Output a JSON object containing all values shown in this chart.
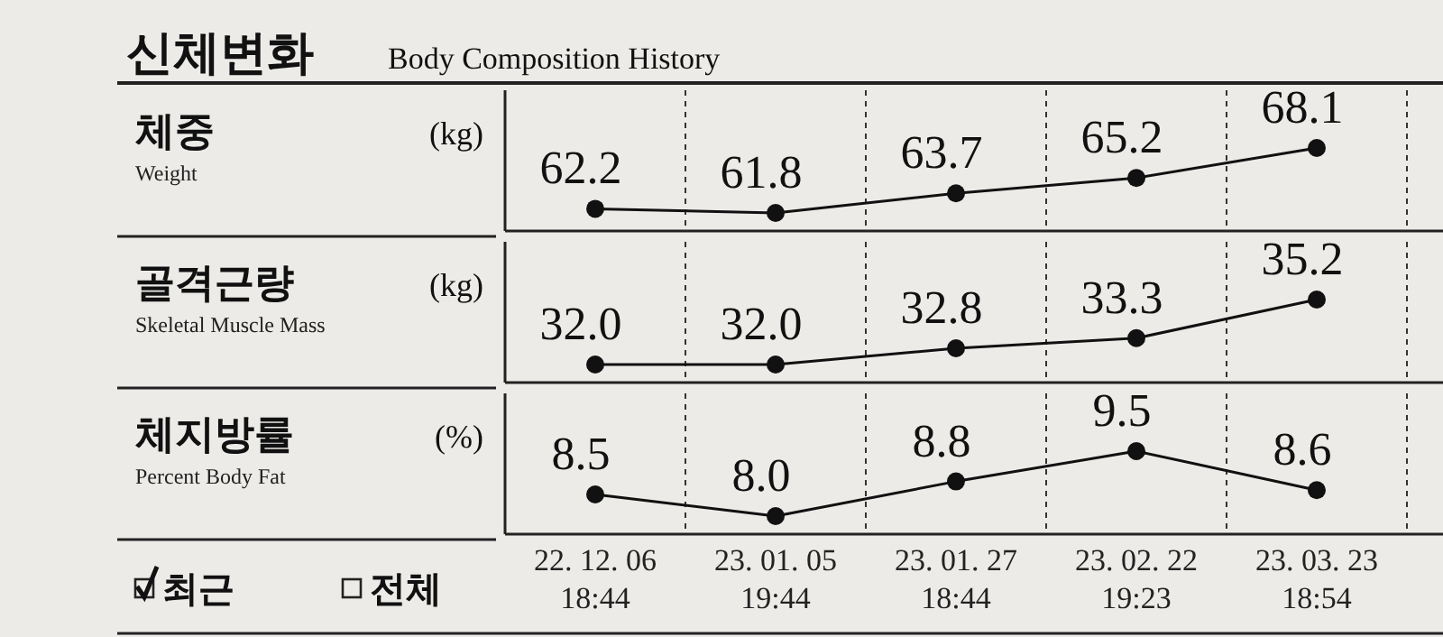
{
  "chart_data": [
    {
      "type": "line",
      "title": "신체변화",
      "subtitle": "Body Composition History",
      "ylabel": "체중",
      "annotations": [
        "Weight",
        "(kg)"
      ],
      "categories": [
        null,
        null,
        null,
        null,
        null
      ],
      "series": [
        {
          "color": "#111111",
          "values": [
            62.2,
            61.8,
            63.7,
            65.2,
            68.1
          ]
        }
      ],
      "data_labels": true,
      "marker": "circle",
      "grid": "x",
      "tick_labels": false
    },
    {
      "type": "line",
      "ylabel": "골격근량",
      "annotations": [
        "Skeletal Muscle Mass",
        "(kg)"
      ],
      "categories": [
        null,
        null,
        null,
        null,
        null
      ],
      "series": [
        {
          "color": "#111111",
          "values": [
            32.0,
            32.0,
            32.8,
            33.3,
            35.2
          ],
          "value_labels": [
            "32.0",
            "32.0",
            "32.8",
            "33.3",
            "35.2"
          ]
        }
      ],
      "marker": "circle",
      "grid": "x",
      "tick_labels": false
    },
    {
      "type": "line",
      "ylabel": "체지방률",
      "annotations": [
        "Percent Body Fat",
        "(%)",
        "최근",
        "전체"
      ],
      "categories": [
        "22. 12. 06\n18:44",
        "23. 01. 05\n19:44",
        "23. 01. 27\n18:44",
        "23. 02. 22\n19:23",
        "23. 03. 23\n18:54"
      ],
      "series": [
        {
          "color": "#111111",
          "values": [
            8.5,
            8.0,
            8.8,
            9.5,
            8.6
          ],
          "value_labels": [
            "8.5",
            "8.0",
            "8.8",
            "9.5",
            "8.6"
          ]
        }
      ],
      "marker": "circle",
      "grid": "x",
      "tick_labels": "x"
    }
  ]
}
